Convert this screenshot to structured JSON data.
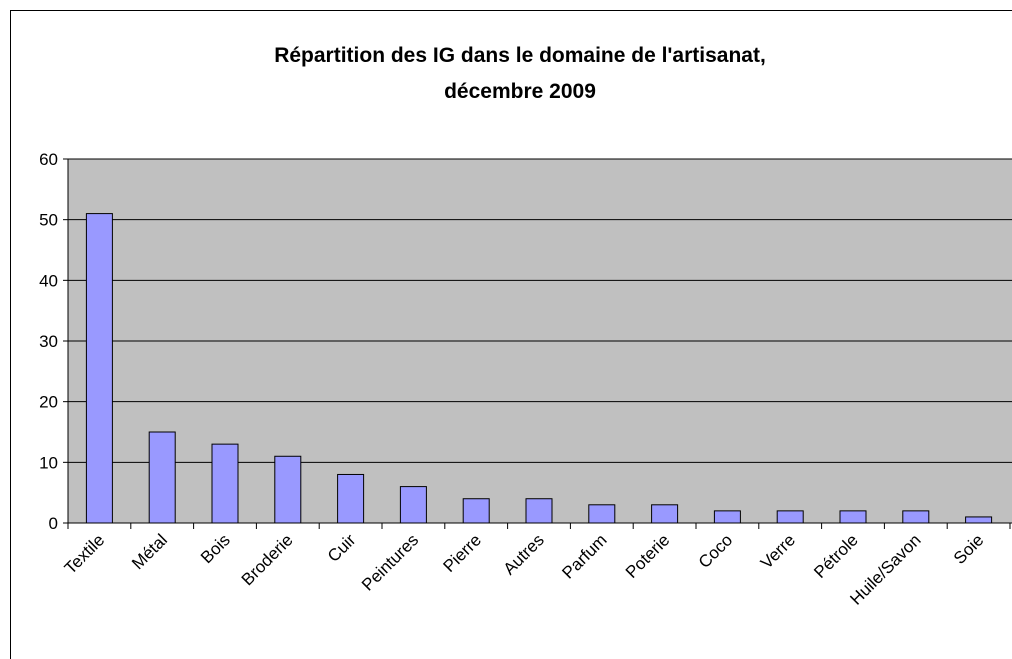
{
  "chart_data": {
    "type": "bar",
    "title": [
      "Répartition des IG dans le domaine de l'artisanat,",
      "décembre 2009"
    ],
    "categories": [
      "Textile",
      "Métal",
      "Bois",
      "Broderie",
      "Cuir",
      "Peintures",
      "Pierre",
      "Autres",
      "Parfum",
      "Poterie",
      "Coco",
      "Verre",
      "Pétrole",
      "Huile/Savon",
      "Soie"
    ],
    "values": [
      51,
      15,
      13,
      11,
      8,
      6,
      4,
      4,
      3,
      3,
      2,
      2,
      2,
      2,
      1
    ],
    "color": "#9999ff",
    "ylim": [
      0,
      60
    ],
    "yticks": [
      0,
      10,
      20,
      30,
      40,
      50,
      60
    ],
    "grid": true
  }
}
